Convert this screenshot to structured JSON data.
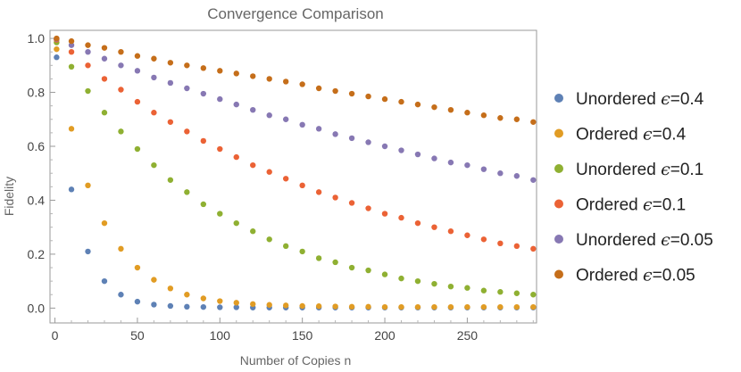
{
  "chart_data": {
    "type": "scatter",
    "title": "Convergence Comparison",
    "xlabel": "Number of Copies n",
    "ylabel": "Fidelity",
    "xlim": [
      -3,
      292
    ],
    "ylim": [
      -0.055,
      1.03
    ],
    "x_ticks": [
      0,
      50,
      100,
      150,
      200,
      250
    ],
    "y_ticks": [
      0.0,
      0.2,
      0.4,
      0.6,
      0.8,
      1.0
    ],
    "x_tick_labels": [
      "0",
      "50",
      "100",
      "150",
      "200",
      "250"
    ],
    "y_tick_labels": [
      "0.0",
      "0.2",
      "0.4",
      "0.6",
      "0.8",
      "1.0"
    ],
    "grid": false,
    "legend_position": "right",
    "x": [
      1,
      10,
      20,
      30,
      40,
      50,
      60,
      70,
      80,
      90,
      100,
      110,
      120,
      130,
      140,
      150,
      160,
      170,
      180,
      190,
      200,
      210,
      220,
      230,
      240,
      250,
      260,
      270,
      280,
      290
    ],
    "series": [
      {
        "name": "Unordered ϵ=0.4",
        "label_text": "Unordered ",
        "label_eps": "ϵ",
        "label_value": "=0.4",
        "color": "#5E81B5",
        "values": [
          0.93,
          0.44,
          0.21,
          0.1,
          0.05,
          0.024,
          0.013,
          0.008,
          0.005,
          0.004,
          0.003,
          0.003,
          0.002,
          0.002,
          0.002,
          0.002,
          0.002,
          0.002,
          0.002,
          0.002,
          0.002,
          0.002,
          0.002,
          0.002,
          0.002,
          0.002,
          0.002,
          0.002,
          0.002,
          0.002
        ]
      },
      {
        "name": "Ordered ϵ=0.4",
        "label_text": "Ordered ",
        "label_eps": "ϵ",
        "label_value": "=0.4",
        "color": "#E19C24",
        "values": [
          0.96,
          0.665,
          0.455,
          0.315,
          0.22,
          0.15,
          0.105,
          0.073,
          0.05,
          0.036,
          0.026,
          0.02,
          0.015,
          0.012,
          0.01,
          0.008,
          0.007,
          0.006,
          0.005,
          0.005,
          0.004,
          0.004,
          0.004,
          0.004,
          0.004,
          0.004,
          0.004,
          0.004,
          0.004,
          0.004
        ]
      },
      {
        "name": "Unordered ϵ=0.1",
        "label_text": "Unordered ",
        "label_eps": "ϵ",
        "label_value": "=0.1",
        "color": "#8FB032",
        "values": [
          0.985,
          0.895,
          0.805,
          0.725,
          0.655,
          0.59,
          0.53,
          0.475,
          0.43,
          0.385,
          0.35,
          0.315,
          0.285,
          0.255,
          0.23,
          0.21,
          0.185,
          0.17,
          0.15,
          0.14,
          0.125,
          0.11,
          0.1,
          0.09,
          0.08,
          0.075,
          0.065,
          0.06,
          0.055,
          0.05
        ]
      },
      {
        "name": "Ordered ϵ=0.1",
        "label_text": "Ordered ",
        "label_eps": "ϵ",
        "label_value": "=0.1",
        "color": "#EB6235",
        "values": [
          0.995,
          0.95,
          0.9,
          0.85,
          0.81,
          0.765,
          0.725,
          0.69,
          0.655,
          0.62,
          0.59,
          0.56,
          0.53,
          0.505,
          0.48,
          0.455,
          0.43,
          0.41,
          0.39,
          0.37,
          0.35,
          0.335,
          0.315,
          0.3,
          0.285,
          0.27,
          0.255,
          0.24,
          0.23,
          0.22
        ]
      },
      {
        "name": "Unordered ϵ=0.05",
        "label_text": "Unordered ",
        "label_eps": "ϵ",
        "label_value": "=0.05",
        "color": "#8778B3",
        "values": [
          0.998,
          0.975,
          0.95,
          0.925,
          0.9,
          0.88,
          0.855,
          0.835,
          0.815,
          0.795,
          0.775,
          0.755,
          0.735,
          0.715,
          0.7,
          0.68,
          0.665,
          0.645,
          0.63,
          0.615,
          0.6,
          0.585,
          0.57,
          0.555,
          0.54,
          0.53,
          0.515,
          0.5,
          0.49,
          0.475
        ]
      },
      {
        "name": "Ordered ϵ=0.05",
        "label_text": "Ordered ",
        "label_eps": "ϵ",
        "label_value": "=0.05",
        "color": "#C56E1A",
        "values": [
          1.0,
          0.99,
          0.975,
          0.965,
          0.95,
          0.935,
          0.925,
          0.91,
          0.9,
          0.89,
          0.88,
          0.87,
          0.86,
          0.85,
          0.84,
          0.83,
          0.815,
          0.805,
          0.795,
          0.785,
          0.775,
          0.765,
          0.755,
          0.745,
          0.735,
          0.725,
          0.715,
          0.705,
          0.7,
          0.69
        ]
      }
    ]
  }
}
